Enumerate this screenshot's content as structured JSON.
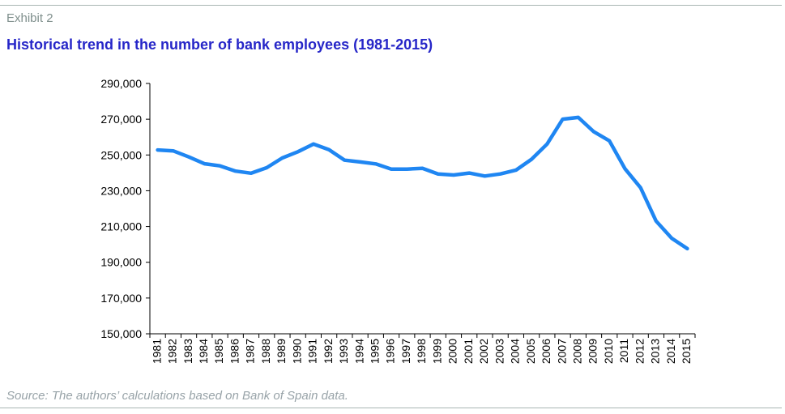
{
  "header": {
    "exhibit": "Exhibit 2",
    "title": "Historical trend in the number of bank employees (1981-2015)"
  },
  "footer": {
    "source": "Source: The authors’ calculations based on Bank of Spain data."
  },
  "colors": {
    "line": "#1f86f2",
    "title": "#2626c8",
    "muted": "#7f8f8c",
    "rule": "#a9b6b3"
  },
  "chart_data": {
    "type": "line",
    "title": "Historical trend in the number of bank employees (1981-2015)",
    "xlabel": "",
    "ylabel": "",
    "ylim": [
      150000,
      290000
    ],
    "yticks": [
      150000,
      170000,
      190000,
      210000,
      230000,
      250000,
      270000,
      290000
    ],
    "ytick_labels": [
      "150,000",
      "170,000",
      "190,000",
      "210,000",
      "230,000",
      "250,000",
      "270,000",
      "290,000"
    ],
    "grid": false,
    "legend": "none",
    "x": [
      "1981",
      "1982",
      "1983",
      "1984",
      "1985",
      "1986",
      "1987",
      "1988",
      "1989",
      "1990",
      "1991",
      "1992",
      "1993",
      "1994",
      "1995",
      "1996",
      "1997",
      "1998",
      "1999",
      "2000",
      "2001",
      "2002",
      "2003",
      "2004",
      "2005",
      "2006",
      "2007",
      "2008",
      "2009",
      "2010",
      "2011",
      "2012",
      "2013",
      "2014",
      "2015"
    ],
    "series": [
      {
        "name": "",
        "values": [
          252800,
          252300,
          248900,
          245100,
          243900,
          241000,
          239800,
          242900,
          248300,
          251800,
          256100,
          253000,
          247100,
          246100,
          245000,
          242100,
          242100,
          242500,
          239400,
          238800,
          239900,
          238200,
          239400,
          241500,
          247600,
          256100,
          270000,
          271000,
          263000,
          257900,
          242300,
          231700,
          213000,
          203400,
          197600
        ]
      }
    ]
  }
}
